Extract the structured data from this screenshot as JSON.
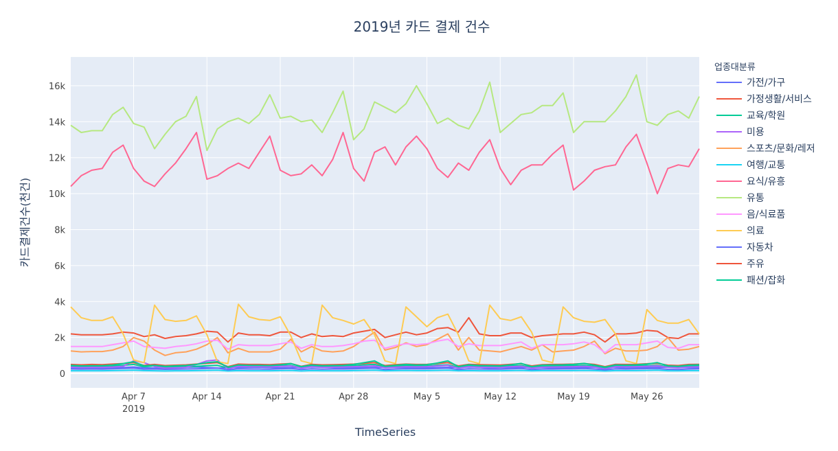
{
  "chart_data": {
    "type": "line",
    "title": "2019년 카드 결제 건수",
    "xlabel": "TimeSeries",
    "ylabel": "카드결제건수(천건)",
    "legend_title": "업종대분류",
    "legend_placement": "right",
    "grid": true,
    "x_start": "2019-04-01",
    "x_end": "2019-05-31",
    "ylim": [
      -800,
      17600
    ],
    "y_ticks": [
      0,
      2000,
      4000,
      6000,
      8000,
      10000,
      12000,
      14000,
      16000
    ],
    "y_tick_labels": [
      "0",
      "2k",
      "4k",
      "6k",
      "8k",
      "10k",
      "12k",
      "14k",
      "16k"
    ],
    "x_ticks": [
      {
        "date": "2019-04-07",
        "label": "Apr 7",
        "sublabel": "2019"
      },
      {
        "date": "2019-04-14",
        "label": "Apr 14",
        "sublabel": ""
      },
      {
        "date": "2019-04-21",
        "label": "Apr 21",
        "sublabel": ""
      },
      {
        "date": "2019-04-28",
        "label": "Apr 28",
        "sublabel": ""
      },
      {
        "date": "2019-05-05",
        "label": "May 5",
        "sublabel": ""
      },
      {
        "date": "2019-05-12",
        "label": "May 12",
        "sublabel": ""
      },
      {
        "date": "2019-05-19",
        "label": "May 19",
        "sublabel": ""
      },
      {
        "date": "2019-05-26",
        "label": "May 26",
        "sublabel": ""
      }
    ],
    "series": [
      {
        "name": "가전/가구",
        "color": "#636efa",
        "values": [
          300,
          280,
          300,
          290,
          310,
          330,
          360,
          320,
          300,
          310,
          320,
          350,
          360,
          330,
          300,
          320,
          330,
          340,
          350,
          330,
          310,
          330,
          340,
          360,
          350,
          330,
          300,
          320,
          330,
          340,
          350,
          340,
          330,
          320,
          310,
          330,
          340,
          350,
          360,
          350,
          300,
          320,
          330,
          340,
          350,
          340,
          320,
          310,
          330,
          340,
          350,
          360,
          350,
          300,
          320,
          330,
          340,
          350,
          340,
          330,
          320
        ]
      },
      {
        "name": "가정생활/서비스",
        "color": "#EF553B",
        "values": [
          2200,
          2150,
          2150,
          2150,
          2200,
          2300,
          2250,
          2050,
          2150,
          1950,
          2050,
          2100,
          2200,
          2350,
          2300,
          1750,
          2250,
          2150,
          2150,
          2100,
          2300,
          2300,
          2000,
          2200,
          2050,
          2100,
          2050,
          2250,
          2350,
          2450,
          2000,
          2150,
          2300,
          2150,
          2250,
          2500,
          2550,
          2300,
          3100,
          2200,
          2100,
          2100,
          2250,
          2250,
          2000,
          2100,
          2150,
          2200,
          2200,
          2300,
          2150,
          1750,
          2200,
          2200,
          2250,
          2400,
          2350,
          2000,
          1950,
          2200,
          2200
        ]
      },
      {
        "name": "교육/학원",
        "color": "#00cc96",
        "values": [
          400,
          380,
          400,
          390,
          420,
          450,
          500,
          380,
          420,
          350,
          360,
          380,
          400,
          430,
          450,
          300,
          420,
          400,
          410,
          400,
          430,
          450,
          320,
          420,
          380,
          390,
          400,
          430,
          480,
          500,
          380,
          400,
          430,
          410,
          420,
          460,
          480,
          350,
          420,
          400,
          390,
          380,
          420,
          440,
          350,
          400,
          410,
          420,
          430,
          450,
          400,
          300,
          420,
          410,
          420,
          440,
          450,
          380,
          360,
          400,
          410
        ]
      },
      {
        "name": "미용",
        "color": "#ab63fa",
        "values": [
          350,
          330,
          340,
          340,
          360,
          400,
          700,
          600,
          380,
          300,
          320,
          340,
          500,
          700,
          750,
          250,
          400,
          380,
          380,
          370,
          390,
          420,
          300,
          380,
          340,
          350,
          360,
          380,
          400,
          420,
          320,
          350,
          380,
          370,
          380,
          420,
          450,
          300,
          380,
          350,
          340,
          330,
          380,
          400,
          300,
          350,
          360,
          370,
          380,
          400,
          360,
          250,
          380,
          370,
          380,
          400,
          420,
          340,
          320,
          360,
          370
        ]
      },
      {
        "name": "스포츠/문화/레저",
        "color": "#FFA15A",
        "values": [
          1250,
          1200,
          1220,
          1220,
          1300,
          1500,
          2000,
          1800,
          1300,
          1000,
          1150,
          1200,
          1350,
          1600,
          2000,
          1150,
          1400,
          1200,
          1200,
          1200,
          1350,
          1900,
          1200,
          1500,
          1250,
          1200,
          1250,
          1500,
          1900,
          2300,
          1300,
          1450,
          1700,
          1500,
          1600,
          1900,
          2200,
          1300,
          2000,
          1300,
          1250,
          1200,
          1350,
          1500,
          1300,
          1600,
          1200,
          1250,
          1300,
          1500,
          1800,
          1100,
          1400,
          1250,
          1250,
          1300,
          1500,
          2000,
          1300,
          1350,
          1500
        ]
      },
      {
        "name": "여행/교통",
        "color": "#19d3f3",
        "values": [
          150,
          150,
          150,
          150,
          160,
          170,
          180,
          160,
          150,
          140,
          150,
          150,
          160,
          170,
          180,
          140,
          160,
          150,
          150,
          150,
          160,
          170,
          140,
          160,
          150,
          150,
          150,
          160,
          170,
          180,
          150,
          160,
          170,
          160,
          160,
          170,
          180,
          150,
          160,
          150,
          150,
          150,
          160,
          170,
          150,
          160,
          160,
          160,
          160,
          170,
          160,
          140,
          160,
          160,
          160,
          170,
          180,
          150,
          150,
          160,
          160
        ]
      },
      {
        "name": "요식/유흥",
        "color": "#FF6692",
        "values": [
          10400,
          11000,
          11300,
          11400,
          12300,
          12700,
          11400,
          10700,
          10400,
          11100,
          11700,
          12500,
          13400,
          10800,
          11000,
          11400,
          11700,
          11400,
          12300,
          13200,
          11300,
          11000,
          11100,
          11600,
          11000,
          11900,
          13400,
          11400,
          10700,
          12300,
          12600,
          11600,
          12600,
          13200,
          12500,
          11400,
          10900,
          11700,
          11300,
          12300,
          13000,
          11400,
          10500,
          11300,
          11600,
          11600,
          12200,
          12700,
          10200,
          10700,
          11300,
          11500,
          11600,
          12600,
          13300,
          11700,
          10000,
          11400,
          11600,
          11500,
          12500
        ]
      },
      {
        "name": "유통",
        "color": "#B6E880",
        "values": [
          13800,
          13400,
          13500,
          13500,
          14400,
          14800,
          13900,
          13700,
          12500,
          13300,
          14000,
          14300,
          15400,
          12400,
          13600,
          14000,
          14200,
          13900,
          14400,
          15500,
          14200,
          14300,
          14000,
          14100,
          13400,
          14500,
          15700,
          13000,
          13600,
          15100,
          14800,
          14500,
          15000,
          16000,
          15000,
          13900,
          14200,
          13800,
          13600,
          14600,
          16200,
          13400,
          13900,
          14400,
          14500,
          14900,
          14900,
          15600,
          13400,
          14000,
          14000,
          14000,
          14600,
          15400,
          16600,
          14000,
          13800,
          14400,
          14600,
          14200,
          15400
        ]
      },
      {
        "name": "음/식료품",
        "color": "#FF97FF",
        "values": [
          1500,
          1500,
          1500,
          1500,
          1600,
          1700,
          1800,
          1500,
          1450,
          1400,
          1500,
          1550,
          1650,
          1800,
          1850,
          1350,
          1600,
          1550,
          1550,
          1550,
          1650,
          1750,
          1400,
          1600,
          1500,
          1500,
          1550,
          1650,
          1800,
          1850,
          1400,
          1550,
          1650,
          1600,
          1650,
          1800,
          1900,
          1500,
          1650,
          1550,
          1550,
          1550,
          1650,
          1750,
          1400,
          1600,
          1600,
          1600,
          1650,
          1750,
          1600,
          1150,
          1600,
          1600,
          1600,
          1700,
          1800,
          1450,
          1400,
          1600,
          1600
        ]
      },
      {
        "name": "의료",
        "color": "#FECB52",
        "values": [
          3700,
          3100,
          2950,
          2950,
          3150,
          2200,
          750,
          600,
          3800,
          3000,
          2900,
          2950,
          3200,
          2150,
          650,
          550,
          3850,
          3150,
          3000,
          2950,
          3150,
          2100,
          700,
          550,
          3800,
          3100,
          2950,
          2750,
          3000,
          2150,
          700,
          550,
          3700,
          3150,
          2600,
          3100,
          3300,
          2150,
          700,
          550,
          3800,
          3050,
          2950,
          3150,
          2300,
          750,
          600,
          3700,
          3100,
          2900,
          2850,
          3000,
          2200,
          700,
          550,
          3550,
          2950,
          2800,
          2800,
          3000,
          2200
        ]
      },
      {
        "name": "자동차",
        "color": "#636efa",
        "values": [
          250,
          240,
          250,
          240,
          260,
          280,
          300,
          240,
          250,
          230,
          240,
          250,
          260,
          280,
          300,
          200,
          260,
          250,
          250,
          240,
          260,
          280,
          220,
          260,
          240,
          250,
          250,
          260,
          280,
          300,
          220,
          250,
          270,
          260,
          260,
          280,
          300,
          220,
          260,
          250,
          240,
          240,
          260,
          280,
          220,
          250,
          250,
          260,
          260,
          280,
          250,
          200,
          260,
          250,
          260,
          270,
          280,
          230,
          220,
          250,
          260
        ]
      },
      {
        "name": "주유",
        "color": "#EF553B",
        "values": [
          500,
          480,
          500,
          490,
          520,
          550,
          600,
          450,
          500,
          440,
          460,
          480,
          520,
          560,
          600,
          380,
          520,
          500,
          500,
          490,
          520,
          550,
          400,
          510,
          480,
          490,
          500,
          520,
          560,
          600,
          440,
          490,
          520,
          500,
          510,
          550,
          600,
          420,
          510,
          490,
          480,
          470,
          510,
          540,
          420,
          490,
          500,
          510,
          520,
          550,
          500,
          380,
          510,
          500,
          510,
          540,
          560,
          460,
          440,
          500,
          510
        ]
      },
      {
        "name": "패션/잡화",
        "color": "#00cc96",
        "values": [
          450,
          420,
          430,
          430,
          470,
          550,
          650,
          420,
          450,
          400,
          420,
          440,
          500,
          600,
          650,
          350,
          470,
          450,
          450,
          440,
          480,
          550,
          380,
          470,
          430,
          440,
          450,
          500,
          600,
          700,
          400,
          450,
          500,
          470,
          490,
          580,
          700,
          380,
          480,
          440,
          430,
          420,
          480,
          560,
          380,
          460,
          470,
          480,
          500,
          560,
          460,
          350,
          470,
          460,
          480,
          520,
          600,
          420,
          400,
          460,
          480
        ]
      }
    ]
  }
}
